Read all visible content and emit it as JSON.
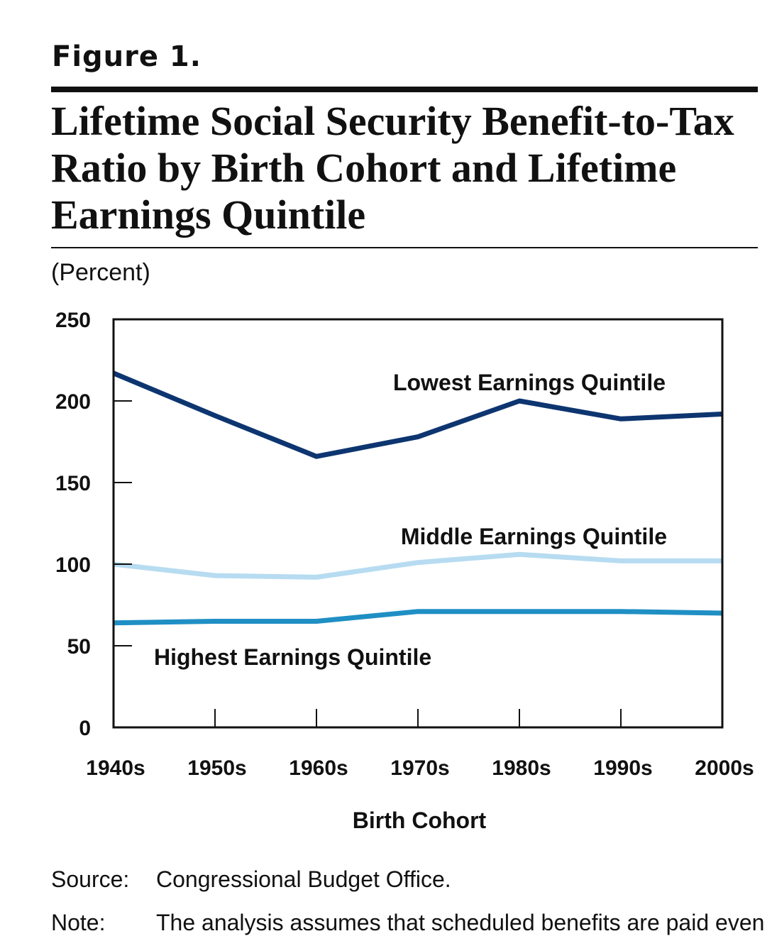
{
  "figure": {
    "label": "Figure 1.",
    "title": "Lifetime Social Security Benefit-to-Tax Ratio by Birth Cohort and Lifetime Earnings Quintile",
    "unit": "(Percent)"
  },
  "chart_data": {
    "type": "line",
    "title": "Lifetime Social Security Benefit-to-Tax Ratio by Birth Cohort and Lifetime Earnings Quintile",
    "xlabel": "Birth Cohort",
    "ylabel": "(Percent)",
    "categories": [
      "1940s",
      "1950s",
      "1960s",
      "1970s",
      "1980s",
      "1990s",
      "2000s"
    ],
    "yticks": [
      0,
      50,
      100,
      150,
      200,
      250
    ],
    "ylim": [
      0,
      250
    ],
    "grid": false,
    "legend": "inline labels",
    "series": [
      {
        "name": "Lowest Earnings Quintile",
        "values": [
          217,
          191,
          166,
          178,
          200,
          189,
          192
        ],
        "color": "#0d3570"
      },
      {
        "name": "Middle Earnings Quintile",
        "values": [
          100,
          93,
          92,
          101,
          106,
          102,
          102
        ],
        "color": "#b7dcf1"
      },
      {
        "name": "Highest Earnings Quintile",
        "values": [
          64,
          65,
          65,
          71,
          71,
          71,
          70
        ],
        "color": "#1f8fc4"
      }
    ]
  },
  "footer": {
    "source_key": "Source:",
    "source_text": "Congressional Budget Office.",
    "note_key": "Note:",
    "note_text": "The analysis assumes that scheduled benefits are paid even"
  }
}
